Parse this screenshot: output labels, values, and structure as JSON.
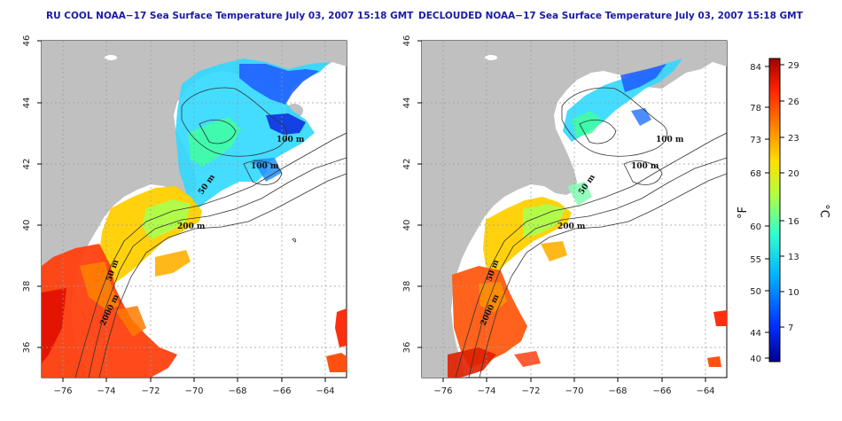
{
  "panels": [
    {
      "title": "RU COOL NOAA−17 Sea Surface Temperature July 03, 2007 15:18 GMT",
      "contours": [
        "100 m",
        "100 m",
        "50 m",
        "200 m",
        "50 m",
        "2000 m"
      ]
    },
    {
      "title": "DECLOUDED NOAA−17 Sea Surface Temperature July 03, 2007 15:18 GMT",
      "contours": [
        "100 m",
        "100 m",
        "50 m",
        "200 m",
        "50 m",
        "2000 m"
      ]
    }
  ],
  "axes": {
    "x_ticks": [
      "−76",
      "−74",
      "−72",
      "−70",
      "−68",
      "−66",
      "−64"
    ],
    "y_ticks": [
      "46",
      "44",
      "42",
      "40",
      "38",
      "36"
    ]
  },
  "colorbar": {
    "unit_left": "°F",
    "unit_right": "°C",
    "f_ticks": [
      "84",
      "78",
      "73",
      "68",
      "60",
      "55",
      "50",
      "44",
      "40"
    ],
    "c_ticks": [
      "29",
      "26",
      "23",
      "20",
      "16",
      "13",
      "10",
      "7"
    ],
    "colors": [
      "#00008f",
      "#0030ff",
      "#00b0ff",
      "#30ffd0",
      "#b0ff40",
      "#ffe000",
      "#ff8000",
      "#ff2000",
      "#a00000"
    ]
  },
  "colors": {
    "land": "#c0c0c0",
    "title": "#1a1aa6"
  }
}
